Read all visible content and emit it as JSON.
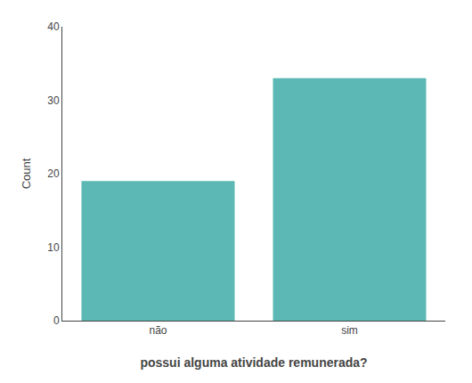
{
  "chart_data": {
    "type": "bar",
    "categories": [
      "não",
      "sim"
    ],
    "values": [
      19,
      33
    ],
    "color": "#5BB8B4",
    "xlabel": "possui alguma atividade remunerada?",
    "ylabel": "Count",
    "ylim": [
      0,
      40
    ],
    "yticks": [
      0,
      10,
      20,
      30,
      40
    ],
    "grid": false
  }
}
